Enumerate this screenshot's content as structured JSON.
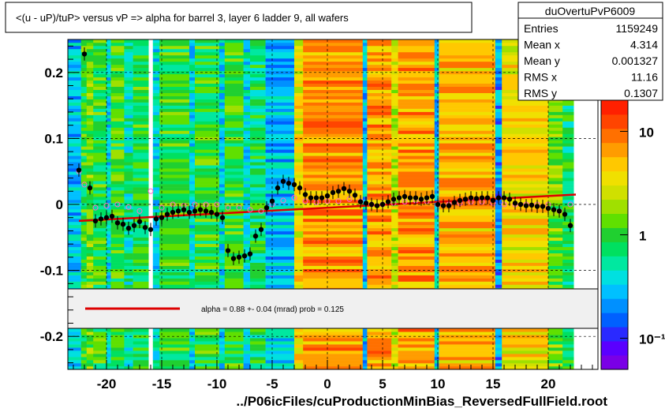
{
  "title": "<(u - uP)/tuP>  versus   vP => alpha for barrel 3, layer 6 ladder 9, all wafers",
  "stats_box": {
    "name": "duOvertuPvP6009",
    "rows": [
      {
        "label": "Entries",
        "value": "1159249"
      },
      {
        "label": "Mean x",
        "value": "4.314"
      },
      {
        "label": "Mean y",
        "value": "0.001327"
      },
      {
        "label": "RMS x",
        "value": "11.16"
      },
      {
        "label": "RMS y",
        "value": "0.1307"
      }
    ]
  },
  "legend_text": "alpha =    0.88 +-  0.04 (mrad) prob = 0.125",
  "xlabel": "../P06icFiles/cuProductionMinBias_ReversedFullField.root",
  "zaxis": {
    "ticks": [
      {
        "label": "10",
        "value": 10
      },
      {
        "label": "1",
        "value": 1
      },
      {
        "label": "10⁻¹",
        "value": 0.1
      }
    ],
    "range": [
      0.05,
      20
    ],
    "log": true
  },
  "colors": {
    "fit_line": "#dd0000",
    "profile_marker": "#000000",
    "hollow_marker": "#ff66cc",
    "legend_bg": "#f0f0f0"
  },
  "chart_data": {
    "type": "heatmap",
    "xlim": [
      -23.5,
      24.5
    ],
    "ylim": [
      -0.25,
      0.25
    ],
    "xticks": [
      -20,
      -15,
      -10,
      -5,
      0,
      5,
      10,
      15,
      20
    ],
    "yticks": [
      -0.2,
      -0.1,
      0,
      0.1,
      0.2
    ],
    "ytick_labels": [
      "-0.2",
      "-0.1",
      "0",
      "0.1",
      "0.2"
    ],
    "grid": true,
    "profile_points": {
      "x": [
        -22.5,
        -22,
        -21.5,
        -21,
        -20.5,
        -20,
        -19.5,
        -19,
        -18.5,
        -18,
        -17.5,
        -17,
        -16.5,
        -16,
        -15.5,
        -15,
        -14.5,
        -14,
        -13.5,
        -13,
        -12.5,
        -12,
        -11.5,
        -11,
        -10.5,
        -10,
        -9.5,
        -9,
        -8.5,
        -8,
        -7.5,
        -7,
        -6.5,
        -6,
        -5.5,
        -5,
        -4.5,
        -4,
        -3.5,
        -3,
        -2.5,
        -2,
        -1.5,
        -1,
        -0.5,
        0,
        0.5,
        1,
        1.5,
        2,
        2.5,
        3,
        3.5,
        4,
        4.5,
        5,
        5.5,
        6,
        6.5,
        7,
        7.5,
        8,
        8.5,
        9,
        9.5,
        10,
        10.5,
        11,
        11.5,
        12,
        12.5,
        13,
        13.5,
        14,
        14.5,
        15,
        15.5,
        16,
        16.5,
        17,
        17.5,
        18,
        18.5,
        19,
        19.5,
        20,
        20.5,
        21,
        21.5,
        22
      ],
      "y": [
        0.052,
        0.228,
        0.025,
        -0.025,
        -0.022,
        -0.02,
        -0.018,
        -0.028,
        -0.03,
        -0.036,
        -0.032,
        -0.026,
        -0.035,
        -0.038,
        -0.022,
        -0.02,
        -0.015,
        -0.012,
        -0.01,
        -0.008,
        -0.012,
        -0.01,
        -0.008,
        -0.01,
        -0.012,
        -0.015,
        -0.02,
        -0.07,
        -0.082,
        -0.08,
        -0.078,
        -0.075,
        -0.048,
        -0.038,
        -0.005,
        0.005,
        0.025,
        0.035,
        0.032,
        0.03,
        0.025,
        0.015,
        0.01,
        0.01,
        0.01,
        0.013,
        0.018,
        0.02,
        0.024,
        0.02,
        0.014,
        0.004,
        0.002,
        0.0,
        -0.002,
        0.0,
        0.004,
        0.008,
        0.01,
        0.012,
        0.01,
        0.01,
        0.008,
        0.01,
        0.012,
        0.0,
        -0.002,
        -0.002,
        0.003,
        0.006,
        0.008,
        0.01,
        0.009,
        0.01,
        0.01,
        0.006,
        0.01,
        0.01,
        0.008,
        0.002,
        0.0,
        -0.002,
        -0.001,
        -0.003,
        -0.003,
        -0.006,
        -0.008,
        -0.01,
        -0.015,
        -0.032
      ],
      "err": 0.01
    },
    "hollow_points": {
      "x": [
        -22.5,
        -22,
        -21,
        -20,
        -19,
        -18,
        -17,
        -16,
        -15,
        -14,
        -13,
        -12,
        -11,
        -10,
        -9,
        -8,
        -7,
        -6,
        -5,
        -4,
        -3,
        -2,
        -1,
        0,
        1,
        2,
        3,
        4,
        5,
        6,
        7,
        8,
        9,
        10,
        11,
        12,
        13,
        14,
        15,
        16,
        17,
        18,
        19,
        20,
        21,
        22
      ],
      "y": [
        0.05,
        0.03,
        -0.005,
        -0.002,
        0.0,
        -0.004,
        -0.01,
        0.02,
        -0.005,
        0.0,
        -0.002,
        0.0,
        0.0,
        0.0,
        -0.005,
        -0.005,
        -0.008,
        -0.01,
        0.0,
        0.006,
        0.01,
        0.005,
        0.003,
        0.005,
        0.005,
        0.008,
        0.005,
        0.0,
        0.0,
        0.002,
        0.004,
        0.006,
        0.005,
        0.0,
        0.0,
        0.002,
        0.004,
        0.004,
        0.002,
        0.0,
        0.0,
        0.0,
        0.0,
        0.0,
        -0.01,
        0.0
      ]
    },
    "fit_line": {
      "x": [
        -22.5,
        22.5
      ],
      "y": [
        -0.025,
        0.015
      ]
    },
    "heat_columns": [
      {
        "x0": -23.5,
        "x1": -22.3,
        "level": 0.3
      },
      {
        "x0": -22.3,
        "x1": -21.8,
        "level": 0.5
      },
      {
        "x0": -21.8,
        "x1": -21.2,
        "level": 0.55
      },
      {
        "x0": -21.2,
        "x1": -20.0,
        "level": 0.5
      },
      {
        "x0": -20.0,
        "x1": -19.6,
        "level": 0.35
      },
      {
        "x0": -19.6,
        "x1": -18.4,
        "level": 0.5
      },
      {
        "x0": -18.4,
        "x1": -17.6,
        "level": 0.4
      },
      {
        "x0": -17.6,
        "x1": -16.2,
        "level": 0.48
      },
      {
        "x0": -16.2,
        "x1": -15.8,
        "level": 0.0
      },
      {
        "x0": -15.8,
        "x1": -15.2,
        "level": 0.35
      },
      {
        "x0": -15.2,
        "x1": -12.5,
        "level": 0.5
      },
      {
        "x0": -12.5,
        "x1": -12.0,
        "level": 0.35
      },
      {
        "x0": -12.0,
        "x1": -9.8,
        "level": 0.5
      },
      {
        "x0": -9.8,
        "x1": -9.3,
        "level": 0.33
      },
      {
        "x0": -9.3,
        "x1": -7.6,
        "level": 0.5
      },
      {
        "x0": -7.6,
        "x1": -7.0,
        "level": 0.35
      },
      {
        "x0": -7.0,
        "x1": -5.6,
        "level": 0.45
      },
      {
        "x0": -5.6,
        "x1": -3.0,
        "level": 0.3
      },
      {
        "x0": -3.0,
        "x1": -2.2,
        "level": 0.7
      },
      {
        "x0": -2.2,
        "x1": 3.2,
        "level": 0.82
      },
      {
        "x0": 3.2,
        "x1": 3.6,
        "level": 0.3
      },
      {
        "x0": 3.6,
        "x1": 5.8,
        "level": 0.8
      },
      {
        "x0": 5.8,
        "x1": 6.4,
        "level": 0.65
      },
      {
        "x0": 6.4,
        "x1": 9.7,
        "level": 0.8
      },
      {
        "x0": 9.7,
        "x1": 10.1,
        "level": 0.3
      },
      {
        "x0": 10.1,
        "x1": 15.2,
        "level": 0.78
      },
      {
        "x0": 15.2,
        "x1": 15.8,
        "level": 0.25
      },
      {
        "x0": 15.8,
        "x1": 20.0,
        "level": 0.72
      },
      {
        "x0": 20.0,
        "x1": 21.3,
        "level": 0.55
      },
      {
        "x0": 21.3,
        "x1": 22.3,
        "level": 0.45
      },
      {
        "x0": 22.3,
        "x1": 24.5,
        "level": 0.0
      }
    ]
  }
}
